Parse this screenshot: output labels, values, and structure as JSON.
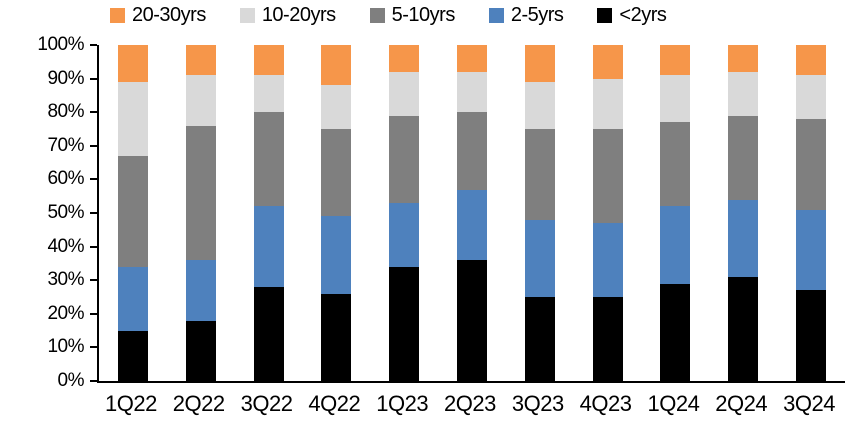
{
  "chart_data": {
    "type": "bar",
    "subtype": "stacked-100",
    "title": "",
    "xlabel": "",
    "ylabel": "",
    "ylim": [
      0,
      100
    ],
    "grid": false,
    "categories": [
      "1Q22",
      "2Q22",
      "3Q22",
      "4Q22",
      "1Q23",
      "2Q23",
      "3Q23",
      "4Q23",
      "1Q24",
      "2Q24",
      "3Q24"
    ],
    "series": [
      {
        "name": "<2yrs",
        "color": "#000000",
        "values": [
          15,
          18,
          28,
          26,
          34,
          36,
          25,
          25,
          29,
          31,
          27
        ]
      },
      {
        "name": "2-5yrs",
        "color": "#4E81BD",
        "values": [
          19,
          18,
          24,
          23,
          19,
          21,
          23,
          22,
          23,
          23,
          24
        ]
      },
      {
        "name": "5-10yrs",
        "color": "#7F7F7F",
        "values": [
          33,
          40,
          28,
          26,
          26,
          23,
          27,
          28,
          25,
          25,
          27
        ]
      },
      {
        "name": "10-20yrs",
        "color": "#D9D9D9",
        "values": [
          22,
          15,
          11,
          13,
          13,
          12,
          14,
          15,
          14,
          13,
          13
        ]
      },
      {
        "name": "20-30yrs",
        "color": "#F6964A",
        "values": [
          11,
          9,
          9,
          12,
          8,
          8,
          11,
          10,
          9,
          8,
          9
        ]
      }
    ],
    "legend": {
      "position": "top",
      "order": [
        "20-30yrs",
        "10-20yrs",
        "5-10yrs",
        "2-5yrs",
        "<2yrs"
      ]
    },
    "y_ticks": [
      {
        "label": "0%",
        "value": 0
      },
      {
        "label": "10%",
        "value": 10
      },
      {
        "label": "20%",
        "value": 20
      },
      {
        "label": "30%",
        "value": 30
      },
      {
        "label": "40%",
        "value": 40
      },
      {
        "label": "50%",
        "value": 50
      },
      {
        "label": "60%",
        "value": 60
      },
      {
        "label": "70%",
        "value": 70
      },
      {
        "label": "80%",
        "value": 80
      },
      {
        "label": "90%",
        "value": 90
      },
      {
        "label": "100%",
        "value": 100
      }
    ],
    "axis_color": "#000000"
  }
}
